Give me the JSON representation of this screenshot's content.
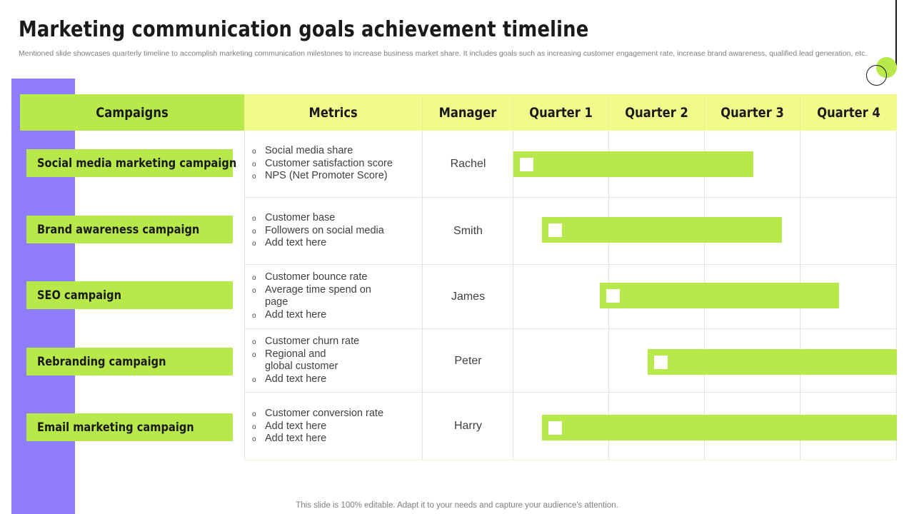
{
  "slide": {
    "title": "Marketing communication goals achievement timeline",
    "subtitle": "Mentioned slide showcases quarterly timeline to accomplish marketing communication milestones to increase business market share. It includes goals such as increasing customer engagement rate, increase brand awareness, qualified lead generation, etc.",
    "footer": "This slide is 100% editable. Adapt it to your needs and capture your audience's attention."
  },
  "table": {
    "headers": {
      "campaigns": "Campaigns",
      "metrics": "Metrics",
      "manager": "Manager",
      "q1": "Quarter 1",
      "q2": "Quarter 2",
      "q3": "Quarter 3",
      "q4": "Quarter 4"
    },
    "rows": [
      {
        "campaign": "Social media marketing campaign",
        "metrics": [
          "Social media share",
          "Customer satisfaction score",
          "NPS (Net Promoter Score)"
        ],
        "manager": "Rachel",
        "timeline_start_quarter": 1.0,
        "timeline_end_quarter": 3.5
      },
      {
        "campaign": "Brand awareness campaign",
        "metrics": [
          "Customer base",
          "Followers on social media",
          "Add text here"
        ],
        "manager": "Smith",
        "timeline_start_quarter": 1.3,
        "timeline_end_quarter": 3.8
      },
      {
        "campaign": "SEO campaign",
        "metrics": [
          "Customer bounce rate",
          "Average time spend on page",
          "Add text here"
        ],
        "manager": "James",
        "timeline_start_quarter": 1.9,
        "timeline_end_quarter": 4.4
      },
      {
        "campaign": "Rebranding campaign",
        "metrics": [
          "Customer churn rate",
          "Regional and global customer",
          "Add text here"
        ],
        "manager": "Peter",
        "timeline_start_quarter": 2.4,
        "timeline_end_quarter": 5.0
      },
      {
        "campaign": "Email marketing campaign",
        "metrics": [
          "Customer conversion rate",
          "Add text here",
          "Add text here"
        ],
        "manager": "Harry",
        "timeline_start_quarter": 1.3,
        "timeline_end_quarter": 5.0
      }
    ]
  },
  "colors": {
    "accent_green": "#b8e94a",
    "header_yellow": "#f0fb8b",
    "side_purple": "#8e7cfa"
  }
}
